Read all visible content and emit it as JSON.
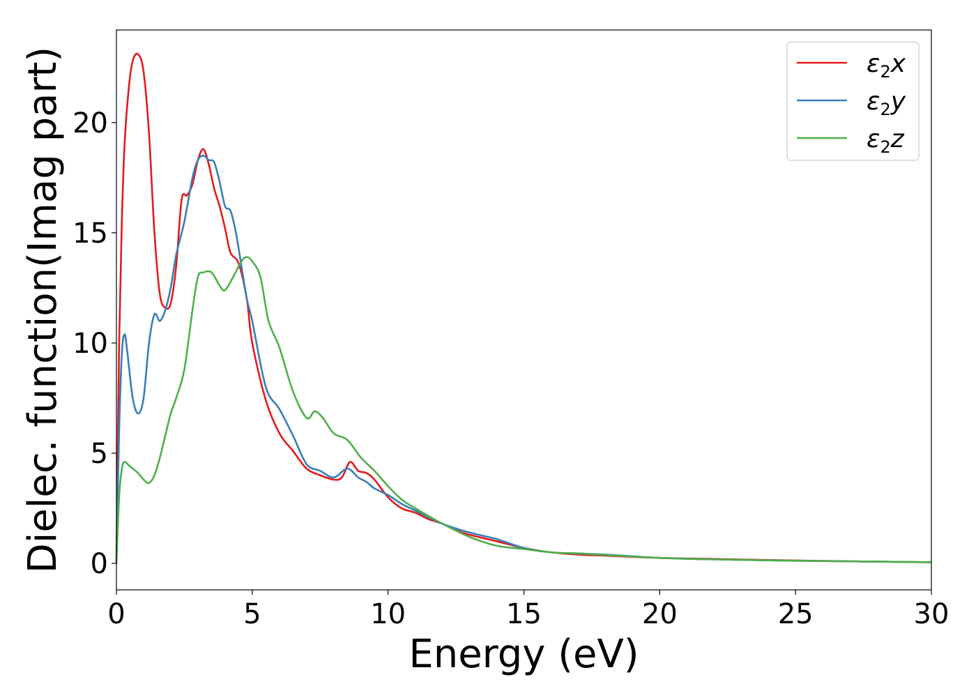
{
  "chart_data": {
    "type": "line",
    "title": "",
    "xlabel": "Energy (eV)",
    "ylabel": "Dielec. function(Imag part)",
    "xlim": [
      0,
      30
    ],
    "ylim": [
      -1.2,
      24.2
    ],
    "xticks": [
      0,
      5,
      10,
      15,
      20,
      25,
      30
    ],
    "yticks": [
      0,
      5,
      10,
      15,
      20
    ],
    "grid": false,
    "legend_position": "top-right",
    "series": [
      {
        "name": "ε₂x",
        "legend_base": "ε",
        "legend_sub": "2",
        "legend_suffix": "x",
        "color": "#e41a1c",
        "x": [
          0,
          0.1,
          0.2,
          0.3,
          0.45,
          0.6,
          0.8,
          1.0,
          1.2,
          1.4,
          1.6,
          1.8,
          2.0,
          2.2,
          2.4,
          2.6,
          2.8,
          3.0,
          3.2,
          3.4,
          3.6,
          3.8,
          4.0,
          4.2,
          4.5,
          4.8,
          5.0,
          5.5,
          6.0,
          6.5,
          7.0,
          7.5,
          8.0,
          8.3,
          8.6,
          8.9,
          9.2,
          9.5,
          10.0,
          10.5,
          11.0,
          11.5,
          12.0,
          12.5,
          13.0,
          14.0,
          15.0,
          16.0,
          17.0,
          18.0,
          20.0,
          22.0,
          25.0,
          28.0,
          30.0
        ],
        "y": [
          0,
          10,
          15.5,
          19,
          21.5,
          22.8,
          23.1,
          22.3,
          19.5,
          15,
          12.2,
          11.6,
          11.8,
          13.5,
          16.5,
          16.7,
          17.2,
          18.3,
          18.8,
          18.1,
          17.0,
          16.2,
          15.2,
          14.1,
          13.6,
          12.0,
          10.0,
          7.4,
          5.9,
          5.1,
          4.3,
          4.0,
          3.8,
          3.9,
          4.6,
          4.2,
          4.1,
          3.8,
          3.0,
          2.5,
          2.3,
          2.0,
          1.8,
          1.5,
          1.3,
          1.0,
          0.7,
          0.5,
          0.4,
          0.35,
          0.25,
          0.2,
          0.13,
          0.08,
          0.05
        ]
      },
      {
        "name": "ε₂y",
        "legend_base": "ε",
        "legend_sub": "2",
        "legend_suffix": "y",
        "color": "#377eb8",
        "x": [
          0,
          0.1,
          0.2,
          0.3,
          0.4,
          0.6,
          0.8,
          1.0,
          1.2,
          1.4,
          1.6,
          1.8,
          2.0,
          2.2,
          2.5,
          2.8,
          3.0,
          3.2,
          3.4,
          3.6,
          3.8,
          4.0,
          4.2,
          4.4,
          4.6,
          4.8,
          5.0,
          5.5,
          6.0,
          6.5,
          7.0,
          7.5,
          8.0,
          8.5,
          8.9,
          9.2,
          9.5,
          10.0,
          10.5,
          11.0,
          12.0,
          13.0,
          14.0,
          15.0,
          16.0,
          17.0,
          18.0,
          20.0,
          22.0,
          25.0,
          28.0,
          30.0
        ],
        "y": [
          0,
          6,
          9.5,
          10.4,
          9.6,
          7.5,
          6.8,
          7.5,
          10.0,
          11.3,
          11.0,
          11.5,
          12.5,
          14.0,
          15.5,
          17.5,
          18.3,
          18.5,
          18.3,
          18.2,
          17.3,
          16.2,
          16.0,
          15.0,
          13.5,
          12.0,
          11.0,
          8.0,
          7.0,
          5.8,
          4.5,
          4.2,
          3.9,
          4.3,
          3.9,
          3.7,
          3.4,
          3.1,
          2.7,
          2.4,
          1.8,
          1.4,
          1.1,
          0.7,
          0.5,
          0.45,
          0.4,
          0.25,
          0.18,
          0.12,
          0.08,
          0.05
        ]
      },
      {
        "name": "ε₂z",
        "legend_base": "ε",
        "legend_sub": "2",
        "legend_suffix": "z",
        "color": "#4daf4a",
        "x": [
          0,
          0.1,
          0.2,
          0.3,
          0.5,
          0.8,
          1.0,
          1.2,
          1.4,
          1.6,
          1.8,
          2.0,
          2.2,
          2.5,
          2.8,
          3.0,
          3.2,
          3.5,
          3.8,
          4.0,
          4.3,
          4.6,
          4.8,
          5.0,
          5.3,
          5.6,
          6.0,
          6.5,
          7.0,
          7.3,
          7.6,
          8.0,
          8.5,
          9.0,
          9.5,
          10.0,
          10.5,
          11.0,
          12.0,
          13.0,
          14.0,
          15.0,
          16.0,
          17.0,
          18.0,
          20.0,
          22.0,
          25.0,
          28.0,
          30.0
        ],
        "y": [
          0,
          3.0,
          4.3,
          4.6,
          4.4,
          4.1,
          3.8,
          3.65,
          4.0,
          4.8,
          5.8,
          6.8,
          7.5,
          8.8,
          11.5,
          13.0,
          13.2,
          13.2,
          12.6,
          12.4,
          13.0,
          13.7,
          13.9,
          13.7,
          13.0,
          11.0,
          9.8,
          7.8,
          6.6,
          6.9,
          6.6,
          5.9,
          5.6,
          4.8,
          4.2,
          3.5,
          2.9,
          2.5,
          1.8,
          1.2,
          0.8,
          0.65,
          0.5,
          0.45,
          0.38,
          0.25,
          0.18,
          0.12,
          0.08,
          0.05
        ]
      }
    ]
  }
}
